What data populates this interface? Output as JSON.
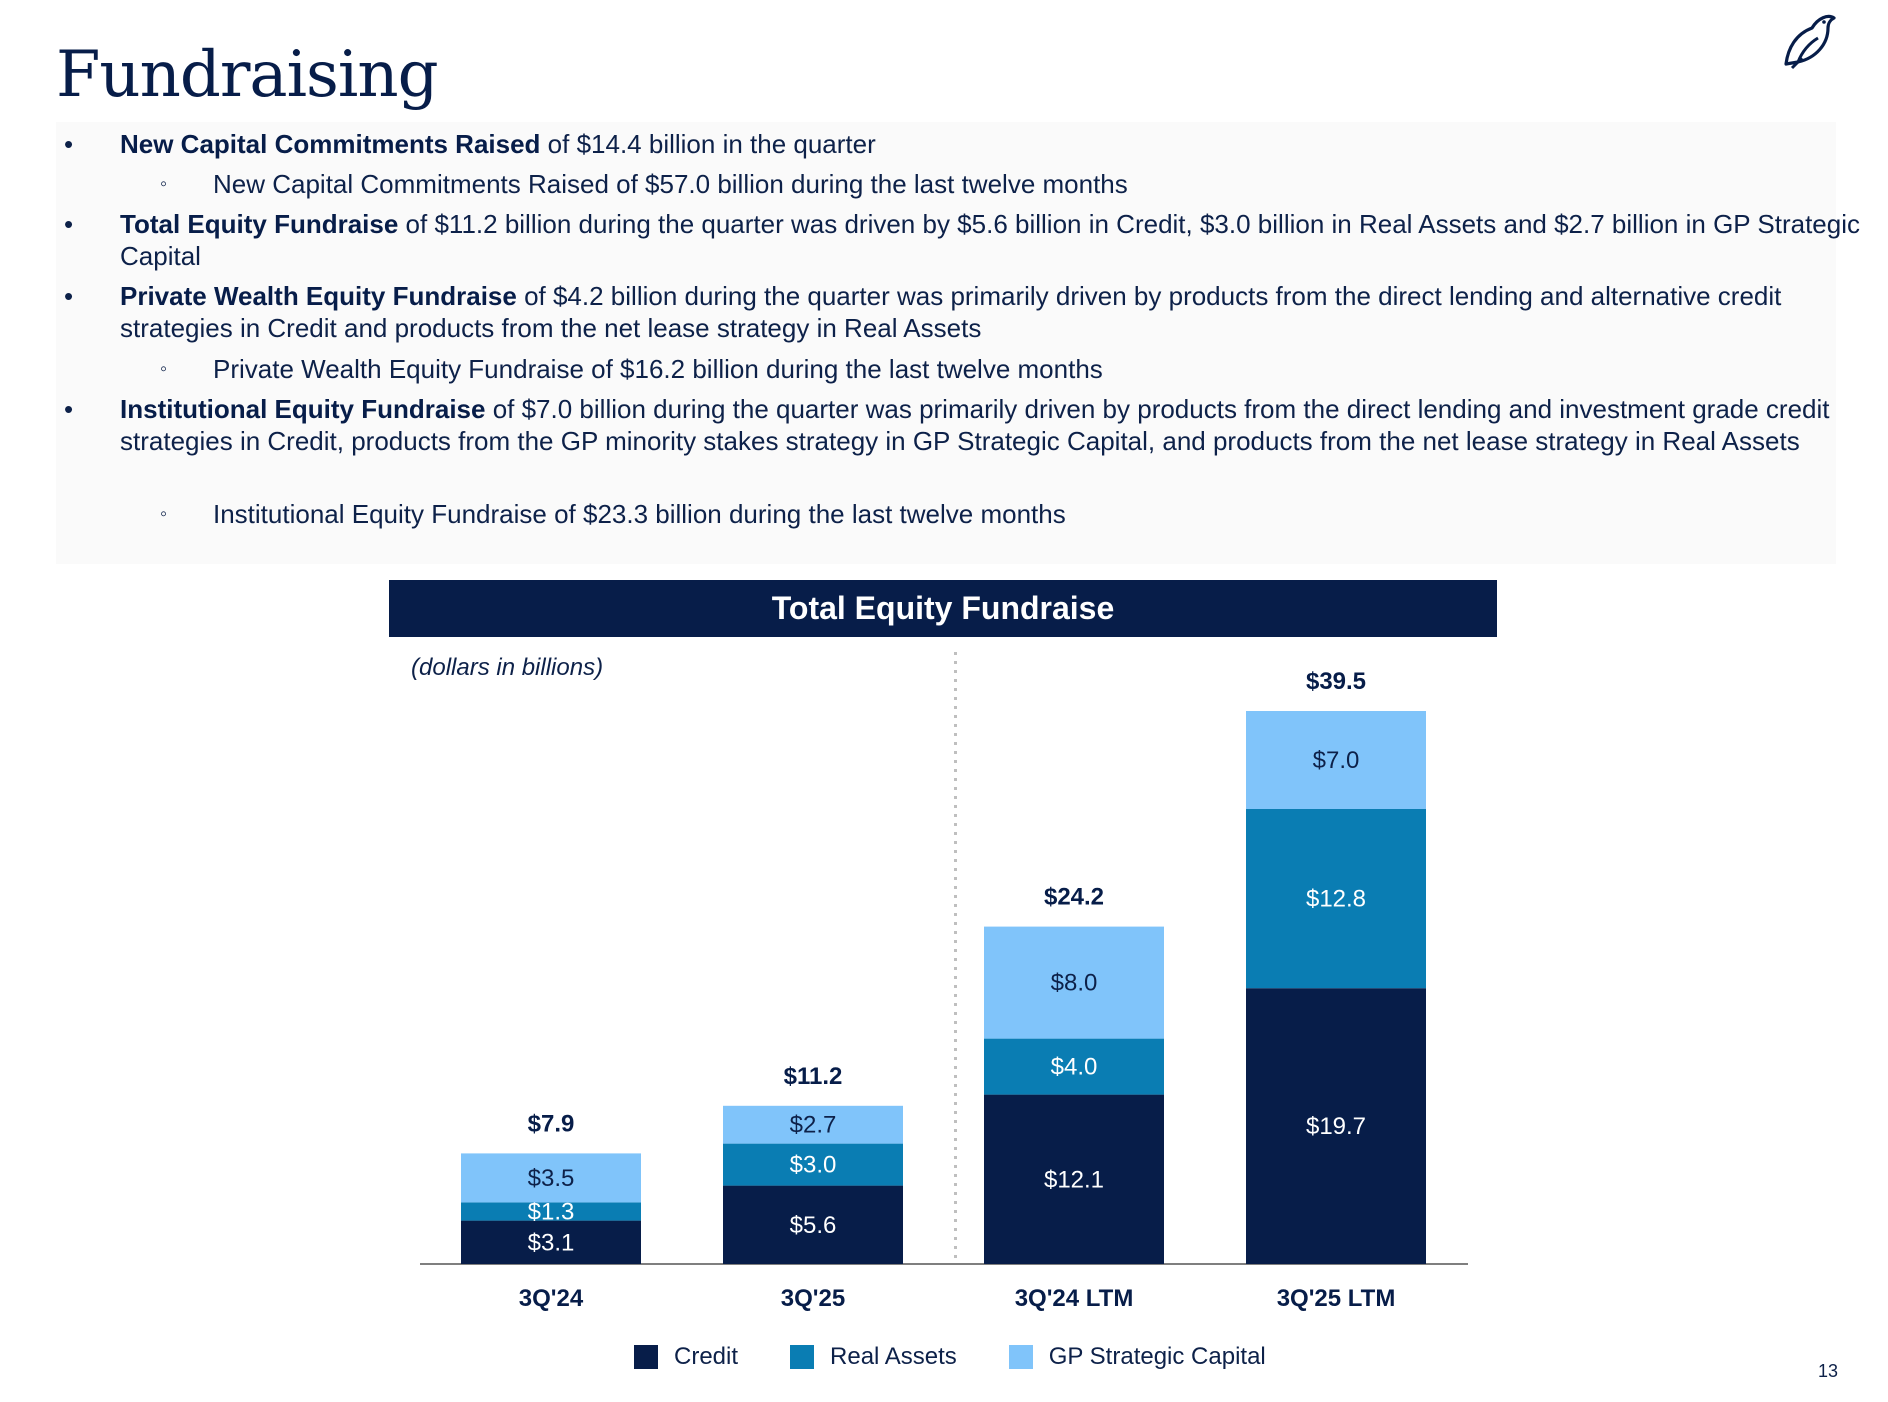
{
  "page": {
    "title": "Fundraising",
    "page_number": "13"
  },
  "bullets": [
    {
      "bold": "New Capital Commitments Raised",
      "rest": " of $14.4 billion in the quarter"
    },
    {
      "sub": "New Capital Commitments Raised of $57.0 billion during the last twelve months"
    },
    {
      "bold": "Total Equity Fundraise",
      "rest": " of $11.2 billion during the quarter was driven by $5.6 billion in Credit, $3.0 billion in Real Assets and $2.7 billion in GP Strategic Capital"
    },
    {
      "bold": "Private Wealth Equity Fundraise",
      "rest": " of $4.2 billion during the quarter was primarily driven by products from the direct lending and alternative credit strategies in Credit and products from the net lease strategy in Real Assets"
    },
    {
      "sub": "Private Wealth Equity Fundraise of $16.2 billion during the last twelve months"
    },
    {
      "bold": "Institutional Equity Fundraise",
      "rest": " of $7.0 billion during the quarter was primarily driven by products from the direct lending and investment grade credit strategies in Credit, products from the GP minority stakes strategy in GP Strategic Capital, and products from the net lease strategy in Real Assets"
    },
    {
      "sub": "Institutional Equity Fundraise of $23.3 billion during the last twelve months"
    }
  ],
  "bullet_symbol": "•",
  "sub_bullet_symbol": "◦",
  "chart_data": {
    "type": "bar",
    "stacked": true,
    "title": "Total Equity Fundraise",
    "subtitle": "(dollars in billions)",
    "categories": [
      "3Q'24",
      "3Q'25",
      "3Q'24 LTM",
      "3Q'25 LTM"
    ],
    "series": [
      {
        "name": "Credit",
        "color": "#071d49",
        "values": [
          3.1,
          5.6,
          12.1,
          19.7
        ],
        "labels": [
          "$3.1",
          "$5.6",
          "$12.1",
          "$19.7"
        ]
      },
      {
        "name": "Real Assets",
        "color": "#0a7db3",
        "values": [
          1.3,
          3.0,
          4.0,
          12.8
        ],
        "labels": [
          "$1.3",
          "$3.0",
          "$4.0",
          "$12.8"
        ]
      },
      {
        "name": "GP Strategic Capital",
        "color": "#80c4fa",
        "values": [
          3.5,
          2.7,
          8.0,
          7.0
        ],
        "labels": [
          "$3.5",
          "$2.7",
          "$8.0",
          "$7.0"
        ]
      }
    ],
    "totals": [
      "$7.9",
      "$11.2",
      "$24.2",
      "$39.5"
    ],
    "ylim": [
      0,
      41
    ],
    "divider_after_category": 1,
    "grid": false,
    "legend_position": "bottom"
  }
}
